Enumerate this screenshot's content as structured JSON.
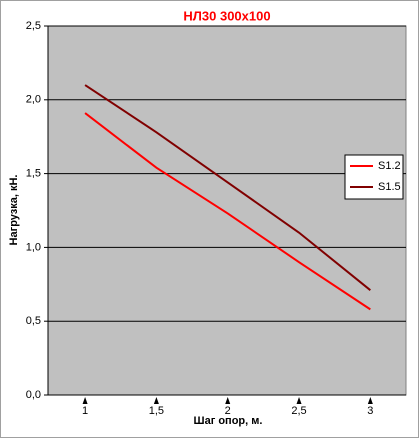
{
  "chart_data": {
    "type": "line",
    "title": "НЛ30 300x100",
    "x_label": "Шаг опор, м.",
    "y_label": "Нагрузка, кН.",
    "x": [
      1,
      1.5,
      2,
      2.5,
      3
    ],
    "series": [
      {
        "name": "S1.2",
        "color": "#ff0000",
        "values": [
          1.91,
          1.54,
          1.23,
          0.9,
          0.58
        ]
      },
      {
        "name": "S1.5",
        "color": "#800000",
        "values": [
          2.1,
          1.78,
          1.44,
          1.1,
          0.71
        ]
      }
    ],
    "xlim": [
      0.74,
      3.25
    ],
    "xticks": [
      1,
      {
        "value": 1.5,
        "label": "1,5"
      },
      2,
      {
        "value": 2.5,
        "label": "2,5"
      },
      3
    ],
    "ylim": [
      0,
      2.5
    ],
    "yticks": [
      {
        "value": 0,
        "label": "0,0"
      },
      {
        "value": 0.5,
        "label": "0,5"
      },
      {
        "value": 1,
        "label": "1,0"
      },
      {
        "value": 1.5,
        "label": "1,5"
      },
      {
        "value": 2,
        "label": "2,0"
      },
      {
        "value": 2.5,
        "label": "2,5"
      }
    ],
    "grid": true,
    "legend": "right",
    "plot_background": "#c0c0c0"
  }
}
